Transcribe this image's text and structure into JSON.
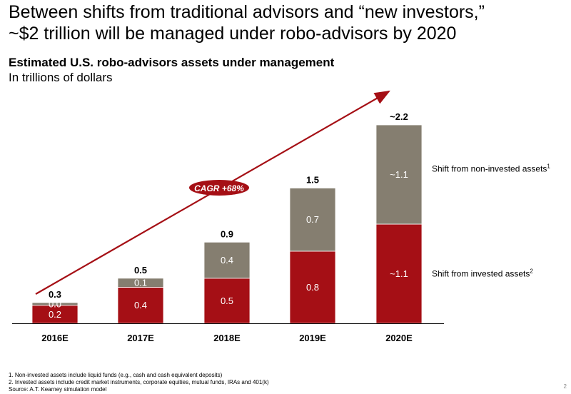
{
  "slide": {
    "headline_line1": "Between shifts from traditional advisors and “new investors,”",
    "headline_line2": "~$2 trillion will be managed under robo-advisors by 2020",
    "footnote1": "1. Non-invested assets include liquid funds (e.g., cash and cash equivalent deposits)",
    "footnote2": "2. Invested assets include credit market instruments, corporate equities, mutual funds, IRAs and 401(k)",
    "source": "Source: A.T. Kearney simulation model",
    "page_number": "2"
  },
  "chart_data": {
    "type": "bar",
    "stacked": true,
    "title": "Estimated U.S. robo-advisors assets under management",
    "subtitle": "In trillions of dollars",
    "categories": [
      "2016E",
      "2017E",
      "2018E",
      "2019E",
      "2020E"
    ],
    "series": [
      {
        "name": "Shift from invested assets",
        "footnote_marker": "2",
        "color": "#A50F15",
        "values": [
          0.2,
          0.4,
          0.5,
          0.8,
          1.1
        ],
        "labels": [
          "0.2",
          "0.4",
          "0.5",
          "0.8",
          "~1.1"
        ]
      },
      {
        "name": "Shift from non-invested assets",
        "footnote_marker": "1",
        "color": "#857E70",
        "values": [
          0.03,
          0.1,
          0.4,
          0.7,
          1.1
        ],
        "labels": [
          "0.0",
          "0.1",
          "0.4",
          "0.7",
          "~1.1"
        ]
      }
    ],
    "totals": [
      "0.3",
      "0.5",
      "0.9",
      "1.5",
      "~2.2"
    ],
    "ylim": [
      0,
      2.2
    ],
    "grid": false,
    "legend": "right",
    "annotation": {
      "text": "CAGR +68%",
      "color": "#A50F15"
    }
  }
}
